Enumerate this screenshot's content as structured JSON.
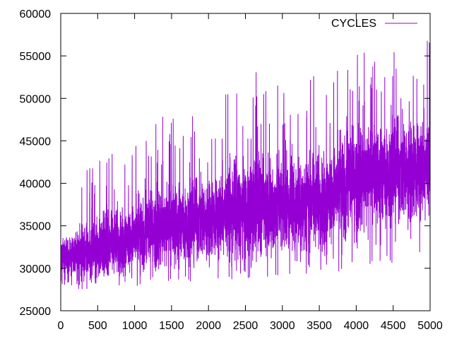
{
  "chart_data": {
    "type": "line",
    "title": "",
    "xlabel": "",
    "ylabel": "",
    "xlim": [
      0,
      5000
    ],
    "ylim": [
      25000,
      60000
    ],
    "x_ticks": [
      0,
      500,
      1000,
      1500,
      2000,
      2500,
      3000,
      3500,
      4000,
      4500,
      5000
    ],
    "y_ticks": [
      25000,
      30000,
      35000,
      40000,
      45000,
      50000,
      55000,
      60000
    ],
    "x_tick_labels": [
      "0",
      "500",
      "1000",
      "1500",
      "2000",
      "2500",
      "3000",
      "3500",
      "4000",
      "4500",
      "5000"
    ],
    "y_tick_labels": [
      "25000",
      "30000",
      "35000",
      "40000",
      "45000",
      "50000",
      "55000",
      "60000"
    ],
    "grid": false,
    "legend_position": "top-right",
    "series": [
      {
        "name": "CYCLES",
        "color": "#9400d3",
        "points": 5000,
        "envelope": {
          "x": [
            0,
            500,
            1000,
            1500,
            2000,
            2500,
            3000,
            3500,
            4000,
            4500,
            5000
          ],
          "y_low": [
            27500,
            27500,
            27800,
            28200,
            28500,
            28800,
            29000,
            29300,
            29600,
            30500,
            32000
          ],
          "y_mean": [
            31000,
            32500,
            33800,
            35000,
            36000,
            37000,
            37500,
            38000,
            40500,
            41500,
            42000
          ],
          "y_high": [
            38000,
            43000,
            45000,
            49000,
            48000,
            53500,
            53500,
            53000,
            55500,
            56000,
            57000
          ]
        }
      }
    ]
  }
}
